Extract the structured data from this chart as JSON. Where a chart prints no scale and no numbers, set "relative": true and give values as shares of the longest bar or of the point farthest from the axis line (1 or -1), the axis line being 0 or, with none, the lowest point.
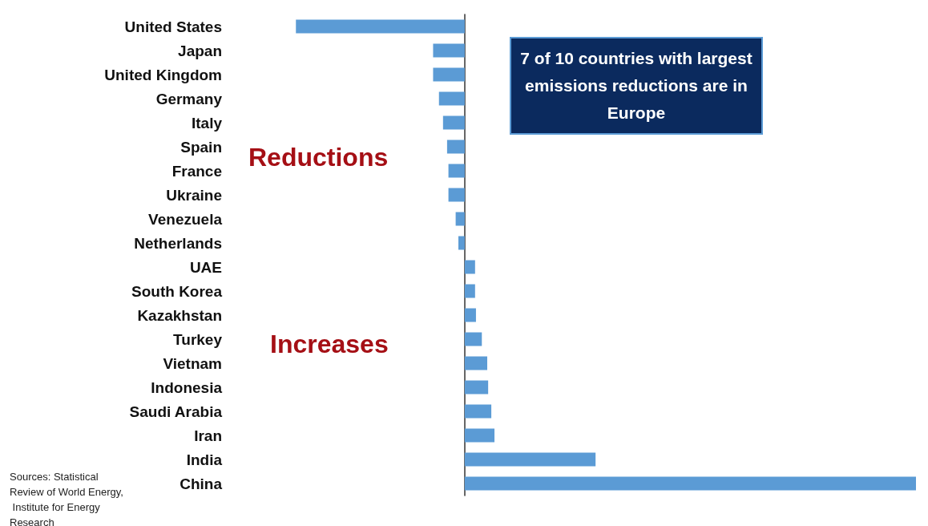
{
  "chart_data": {
    "type": "bar",
    "orientation": "horizontal",
    "relative": true,
    "categories": [
      "United States",
      "Japan",
      "United Kingdom",
      "Germany",
      "Italy",
      "Spain",
      "France",
      "Ukraine",
      "Venezuela",
      "Netherlands",
      "UAE",
      "South Korea",
      "Kazakhstan",
      "Turkey",
      "Vietnam",
      "Indonesia",
      "Saudi Arabia",
      "Iran",
      "India",
      "China"
    ],
    "values": [
      -0.374,
      -0.07,
      -0.07,
      -0.057,
      -0.048,
      -0.039,
      -0.036,
      -0.036,
      -0.02,
      -0.014,
      0.023,
      0.023,
      0.025,
      0.038,
      0.05,
      0.052,
      0.059,
      0.066,
      0.29,
      1
    ],
    "color": "#5b9bd5",
    "annotations": [
      "7 of 10 countries with largest emissions reductions are in Europe",
      "Reductions",
      "Increases",
      "Sources: Statistical Review of World Energy, Institute for Energy Research"
    ]
  }
}
